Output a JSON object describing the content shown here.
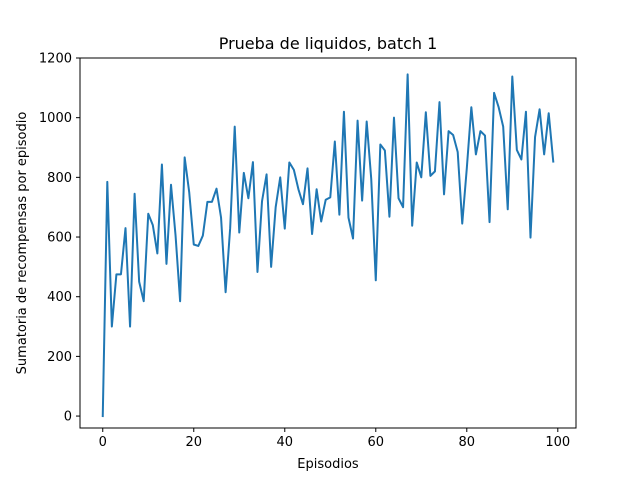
{
  "chart_data": {
    "type": "line",
    "title": "Prueba de liquidos, batch 1",
    "xlabel": "Episodios",
    "ylabel": "Sumatoria de recompensas por episodio",
    "xlim": [
      -5,
      104
    ],
    "ylim": [
      -40,
      1200
    ],
    "xticks": [
      0,
      20,
      40,
      60,
      80,
      100
    ],
    "yticks": [
      0,
      200,
      400,
      600,
      800,
      1000,
      1200
    ],
    "grid": false,
    "legend": "none",
    "line_color": "#1f77b4",
    "series": [
      {
        "x": [
          0,
          1,
          2,
          3,
          4,
          5,
          6,
          7,
          8,
          9,
          10,
          11,
          12,
          13,
          14,
          15,
          16,
          17,
          18,
          19,
          20,
          21,
          22,
          23,
          24,
          25,
          26,
          27,
          28,
          29,
          30,
          31,
          32,
          33,
          34,
          35,
          36,
          37,
          38,
          39,
          40,
          41,
          42,
          43,
          44,
          45,
          46,
          47,
          48,
          49,
          50,
          51,
          52,
          53,
          54,
          55,
          56,
          57,
          58,
          59,
          60,
          61,
          62,
          63,
          64,
          65,
          66,
          67,
          68,
          69,
          70,
          71,
          72,
          73,
          74,
          75,
          76,
          77,
          78,
          79,
          80,
          81,
          82,
          83,
          84,
          85,
          86,
          87,
          88,
          89,
          90,
          91,
          92,
          93,
          94,
          95,
          96,
          97,
          98,
          99
        ],
        "values": [
          0,
          785,
          300,
          475,
          475,
          630,
          300,
          745,
          450,
          385,
          678,
          640,
          545,
          843,
          510,
          775,
          605,
          385,
          867,
          750,
          575,
          570,
          605,
          718,
          718,
          762,
          665,
          415,
          630,
          970,
          615,
          815,
          730,
          851,
          483,
          720,
          810,
          500,
          700,
          800,
          628,
          850,
          825,
          760,
          710,
          830,
          610,
          760,
          652,
          725,
          733,
          920,
          675,
          1020,
          665,
          595,
          990,
          722,
          987,
          795,
          455,
          910,
          890,
          668,
          1000,
          730,
          700,
          1145,
          638,
          850,
          800,
          1018,
          805,
          820,
          1052,
          743,
          955,
          942,
          885,
          645,
          830,
          1035,
          877,
          955,
          940,
          650,
          1083,
          1035,
          970,
          693,
          1138,
          892,
          860,
          1020,
          598,
          935,
          1028,
          877,
          1015,
          853
        ]
      }
    ]
  }
}
